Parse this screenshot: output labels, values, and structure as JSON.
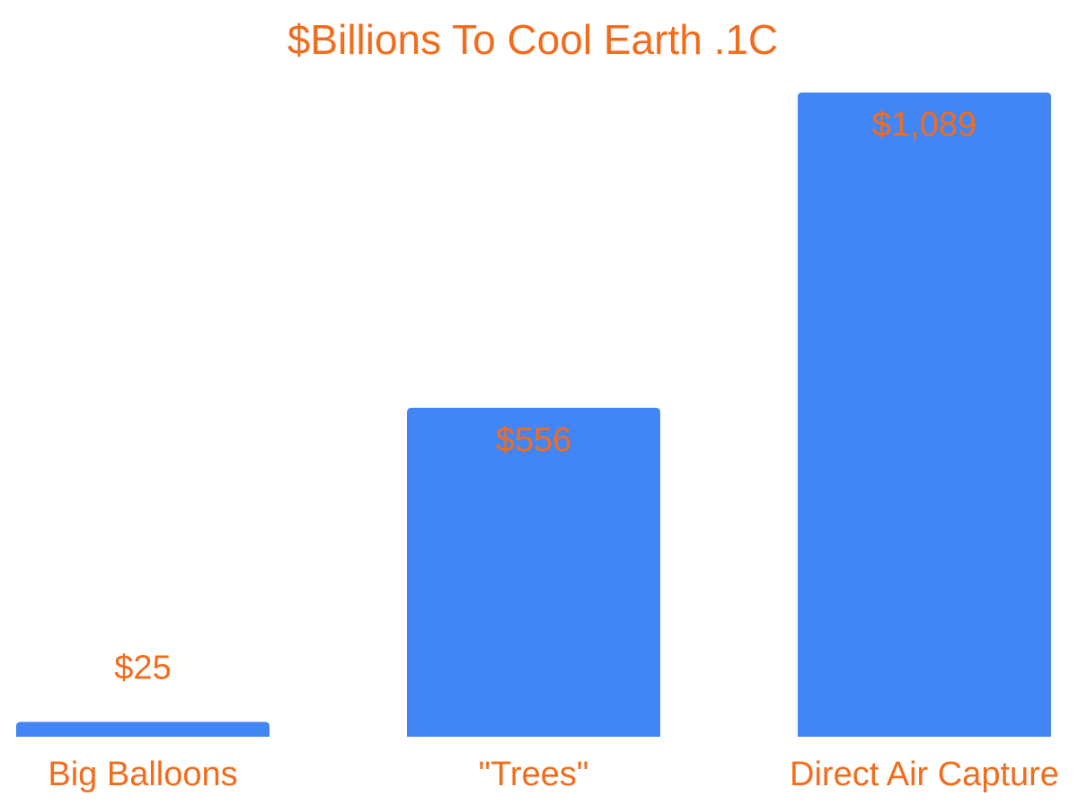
{
  "chart_data": {
    "type": "bar",
    "title": "$Billions To Cool Earth .1C",
    "xlabel": "",
    "ylabel": "",
    "categories": [
      "Big Balloons",
      "\"Trees\"",
      "Direct Air Capture"
    ],
    "values": [
      25,
      556,
      1089
    ],
    "value_labels": [
      "$25",
      "$556",
      "$1,089"
    ],
    "ylim": [
      0,
      1089
    ],
    "grid": false,
    "legend": "none"
  },
  "colors": {
    "bar": "#4285F4",
    "text": "#F26C1C",
    "background": "#FFFFFF"
  }
}
